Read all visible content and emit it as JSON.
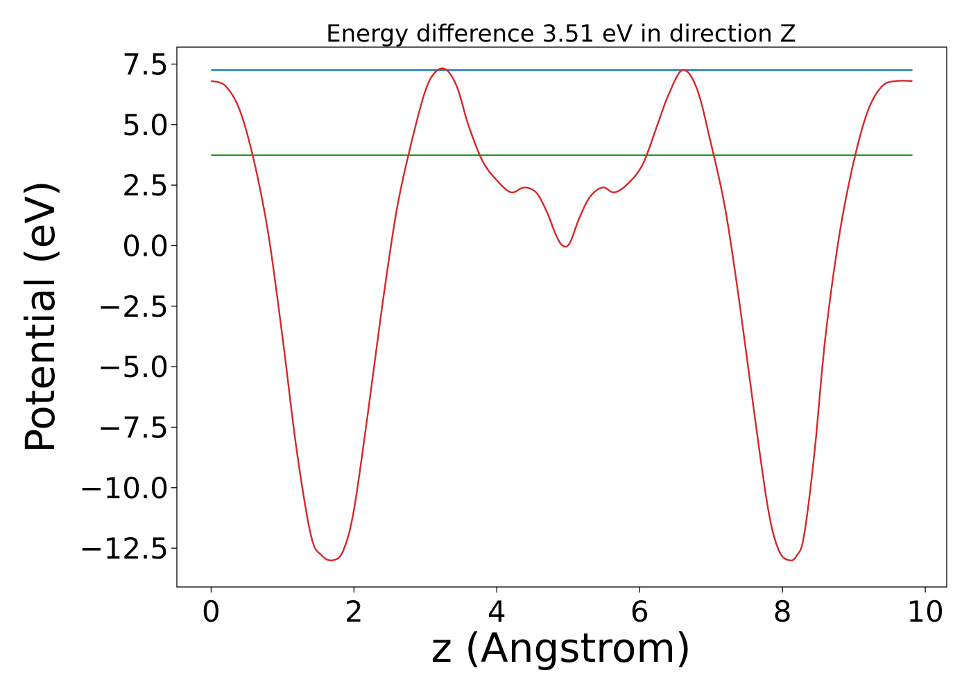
{
  "chart_data": {
    "type": "line",
    "title": "Energy difference 3.51 eV in direction Z",
    "xlabel": "z (Angstrom)",
    "ylabel": "Potential (eV)",
    "xlim": [
      -0.48,
      10.3
    ],
    "ylim": [
      -14.1,
      8.2
    ],
    "xticks": [
      0,
      2,
      4,
      6,
      8,
      10
    ],
    "xtick_labels": [
      "0",
      "2",
      "4",
      "6",
      "8",
      "10"
    ],
    "yticks": [
      7.5,
      5.0,
      2.5,
      0.0,
      -2.5,
      -5.0,
      -7.5,
      -10.0,
      -12.5
    ],
    "ytick_labels": [
      "7.5",
      "5.0",
      "2.5",
      "0.0",
      "−2.5",
      "−5.0",
      "−7.5",
      "−10.0",
      "−12.5"
    ],
    "grid": false,
    "series": [
      {
        "color": "#1f77b4",
        "x": [
          0,
          9.82
        ],
        "y": [
          7.25,
          7.25
        ]
      },
      {
        "color": "#2ca02c",
        "x": [
          0,
          9.82
        ],
        "y": [
          3.74,
          3.74
        ]
      },
      {
        "color": "#d62728",
        "x": [
          0,
          0.2,
          0.4,
          0.6,
          0.8,
          1.0,
          1.2,
          1.4,
          1.55,
          1.7,
          1.85,
          2.0,
          2.2,
          2.4,
          2.6,
          2.8,
          3.0,
          3.15,
          3.3,
          3.45,
          3.6,
          3.8,
          4.0,
          4.2,
          4.38,
          4.55,
          4.7,
          4.82,
          4.92,
          5.02,
          5.15,
          5.3,
          5.48,
          5.65,
          5.85,
          6.05,
          6.25,
          6.4,
          6.6,
          6.8,
          7.0,
          7.2,
          7.4,
          7.6,
          7.8,
          7.95,
          8.1,
          8.2,
          8.3,
          8.45,
          8.6,
          8.8,
          9.0,
          9.2,
          9.4,
          9.6,
          9.82
        ],
        "y": [
          6.8,
          6.6,
          5.6,
          3.5,
          0.5,
          -3.8,
          -8.5,
          -12.0,
          -12.8,
          -13.0,
          -12.6,
          -10.9,
          -6.8,
          -2.4,
          1.5,
          4.2,
          6.4,
          7.2,
          7.25,
          6.5,
          5.0,
          3.5,
          2.7,
          2.2,
          2.4,
          2.2,
          1.4,
          0.5,
          0.0,
          0.1,
          1.1,
          2.0,
          2.4,
          2.2,
          2.6,
          3.4,
          5.0,
          6.2,
          7.25,
          6.5,
          4.2,
          1.5,
          -2.4,
          -6.8,
          -10.9,
          -12.6,
          -13.0,
          -12.8,
          -12.0,
          -8.5,
          -3.8,
          0.5,
          3.5,
          5.6,
          6.6,
          6.8,
          6.8
        ]
      }
    ]
  }
}
